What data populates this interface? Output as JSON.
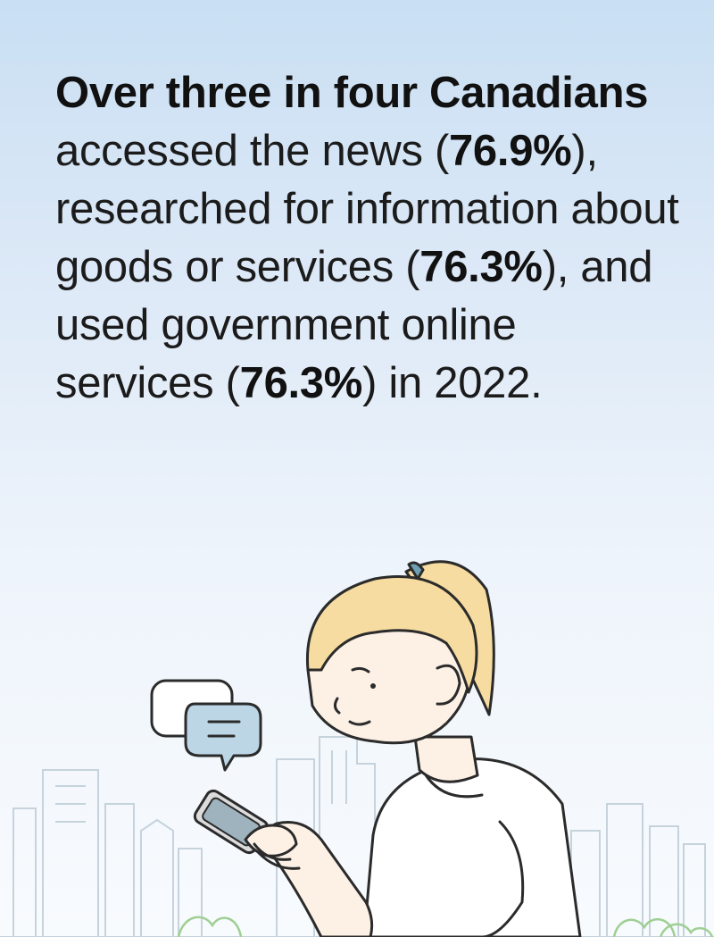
{
  "headline": {
    "lead_bold": "Over three in four Canadians",
    "part1": " accessed the news (",
    "stat1": "76.9%",
    "part2": "), researched for information about goods or services (",
    "stat2": "76.3%",
    "part3": "), and used government online services (",
    "stat3": "76.3%",
    "part4": ") in 2022."
  },
  "colors": {
    "sky_top": "#c9dff3",
    "sky_bottom": "#f8fbfe",
    "hair": "#f6dca0",
    "skin": "#fdf1e6",
    "outline": "#2b2b2b",
    "bubble_front": "#bcd6e6",
    "buildings": "#c6d3dc",
    "bushes": "#9fcf93"
  },
  "icons": [
    "chat-bubbles-icon",
    "smartphone-icon"
  ]
}
